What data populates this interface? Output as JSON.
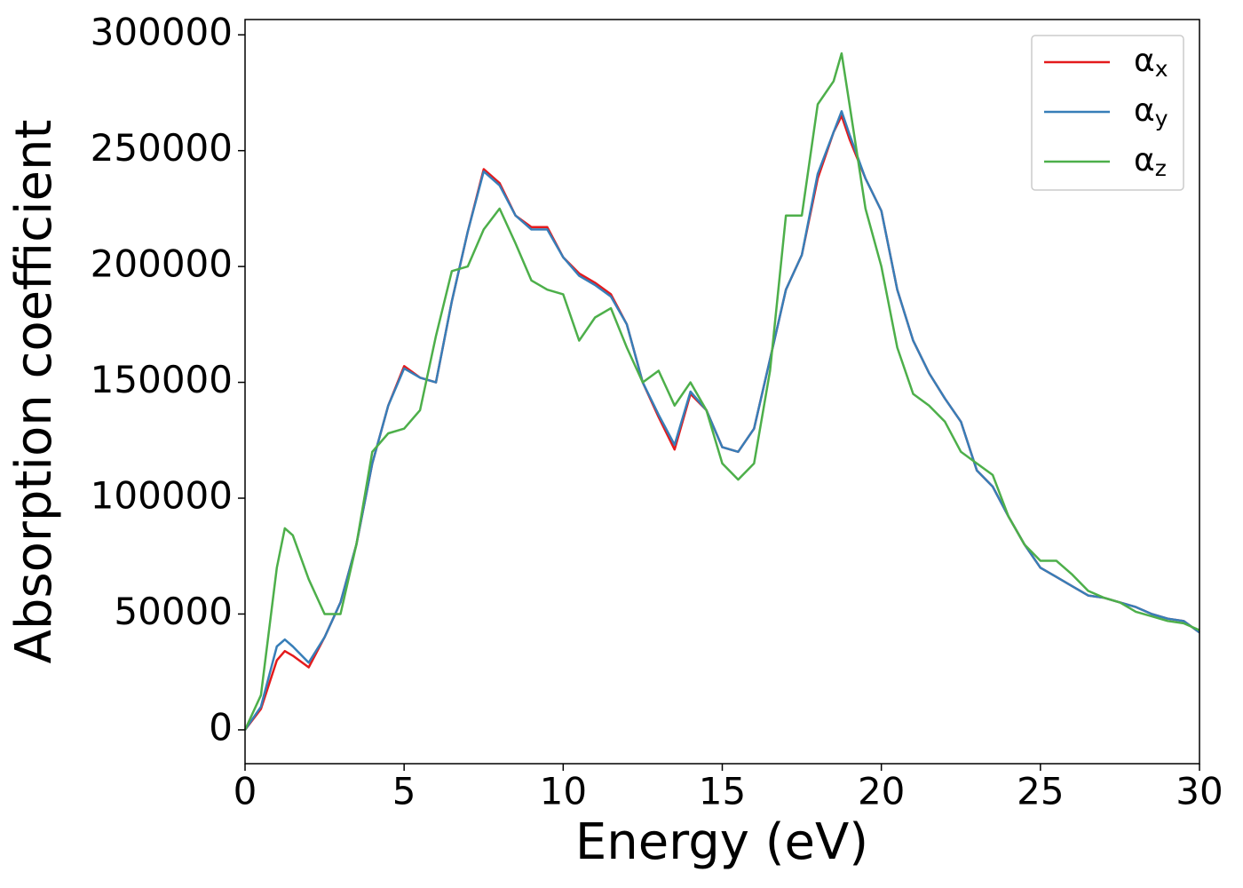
{
  "chart_data": {
    "type": "line",
    "xlabel": "Energy (eV)",
    "ylabel": "Absorption coefficient",
    "x": [
      0,
      0.5,
      1,
      1.25,
      1.5,
      2,
      2.5,
      3,
      3.5,
      4,
      4.5,
      5,
      5.5,
      6,
      6.5,
      7,
      7.5,
      8,
      8.5,
      9,
      9.5,
      10,
      10.5,
      11,
      11.5,
      12,
      12.5,
      13,
      13.5,
      14,
      14.5,
      15,
      15.5,
      16,
      16.5,
      17,
      17.5,
      18,
      18.5,
      18.75,
      19,
      19.5,
      20,
      20.5,
      21,
      21.5,
      22,
      22.5,
      23,
      23.5,
      24,
      24.5,
      25,
      25.5,
      26,
      26.5,
      27,
      27.5,
      28,
      28.5,
      29,
      29.5,
      30
    ],
    "series": [
      {
        "name": "αx",
        "color": "#e41a1c",
        "values": [
          0,
          9000,
          30000,
          34000,
          32000,
          27000,
          40000,
          55000,
          80000,
          115000,
          140000,
          157000,
          152000,
          150000,
          185000,
          215000,
          242000,
          236000,
          222000,
          217000,
          217000,
          204000,
          197000,
          193000,
          188000,
          175000,
          150000,
          135000,
          121000,
          145000,
          138000,
          122000,
          120000,
          130000,
          160000,
          190000,
          205000,
          238000,
          258000,
          265000,
          255000,
          238000,
          224000,
          190000,
          168000,
          154000,
          143000,
          133000,
          112000,
          105000,
          92000,
          80000,
          70000,
          66000,
          62000,
          58000,
          57000,
          55000,
          53000,
          50000,
          48000,
          47000,
          42000
        ]
      },
      {
        "name": "αy",
        "color": "#377eb8",
        "values": [
          0,
          10000,
          36000,
          39000,
          36000,
          29000,
          40000,
          55000,
          80000,
          115000,
          140000,
          156000,
          152000,
          150000,
          185000,
          215000,
          241000,
          235000,
          222000,
          216000,
          216000,
          204000,
          196000,
          192000,
          187000,
          175000,
          150000,
          136000,
          123000,
          146000,
          138000,
          122000,
          120000,
          130000,
          160000,
          190000,
          205000,
          240000,
          258000,
          267000,
          257000,
          238000,
          224000,
          190000,
          168000,
          154000,
          143000,
          133000,
          112000,
          105000,
          92000,
          80000,
          70000,
          66000,
          62000,
          58000,
          57000,
          55000,
          53000,
          50000,
          48000,
          47000,
          42000
        ]
      },
      {
        "name": "αz",
        "color": "#4daf4a",
        "values": [
          0,
          15000,
          70000,
          87000,
          84000,
          65000,
          50000,
          50000,
          80000,
          120000,
          128000,
          130000,
          138000,
          170000,
          198000,
          200000,
          216000,
          225000,
          210000,
          194000,
          190000,
          188000,
          168000,
          178000,
          182000,
          165000,
          150000,
          155000,
          140000,
          150000,
          138000,
          115000,
          108000,
          115000,
          155000,
          222000,
          222000,
          270000,
          280000,
          292000,
          270000,
          225000,
          200000,
          165000,
          145000,
          140000,
          133000,
          120000,
          115000,
          110000,
          92000,
          80000,
          73000,
          73000,
          67000,
          60000,
          57000,
          55000,
          51000,
          49000,
          47000,
          46000,
          43000
        ]
      }
    ],
    "xlim": [
      0,
      30
    ],
    "xticks": [
      0,
      5,
      10,
      15,
      20,
      25,
      30
    ],
    "ylim": [
      -14600,
      306600
    ],
    "yticks": [
      0,
      50000,
      100000,
      150000,
      200000,
      250000,
      300000
    ],
    "legend": "upper right"
  }
}
